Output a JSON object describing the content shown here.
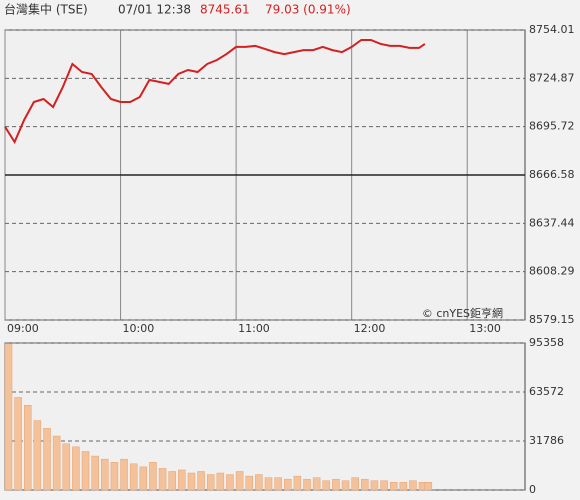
{
  "header": {
    "name": "台灣集中 (TSE)",
    "time": "07/01 12:38",
    "price": "8745.61",
    "change": "79.03 (0.91%)"
  },
  "chart_data": [
    {
      "type": "line",
      "annotation": "© cnYES鉅亨網",
      "color": "#d42020",
      "x": [
        "09:00",
        "09:05",
        "09:10",
        "09:15",
        "09:20",
        "09:25",
        "09:30",
        "09:35",
        "09:40",
        "09:45",
        "09:50",
        "09:55",
        "10:00",
        "10:05",
        "10:10",
        "10:15",
        "10:20",
        "10:25",
        "10:30",
        "10:35",
        "10:40",
        "10:45",
        "10:50",
        "10:55",
        "11:00",
        "11:05",
        "11:10",
        "11:15",
        "11:20",
        "11:25",
        "11:30",
        "11:35",
        "11:40",
        "11:45",
        "11:50",
        "11:55",
        "12:00",
        "12:05",
        "12:10",
        "12:15",
        "12:20",
        "12:25",
        "12:30",
        "12:35",
        "12:38"
      ],
      "values": [
        8695.7,
        8686.5,
        8700,
        8710.6,
        8712.4,
        8707.6,
        8719.6,
        8733.5,
        8728.7,
        8727.5,
        8719.6,
        8712.4,
        8710.6,
        8710.6,
        8713.6,
        8723.9,
        8722.7,
        8721.5,
        8727.5,
        8729.9,
        8728.7,
        8733.5,
        8735.9,
        8739.5,
        8743.8,
        8743.8,
        8744.4,
        8742.6,
        8740.7,
        8739.5,
        8740.7,
        8741.9,
        8741.9,
        8743.8,
        8741.9,
        8740.7,
        8743.8,
        8748,
        8748,
        8745.6,
        8744.4,
        8744.4,
        8743.2,
        8743.2,
        8745.61
      ],
      "xlim": [
        "09:00",
        "13:30"
      ],
      "xticks": [
        "09:00",
        "10:00",
        "11:00",
        "12:00",
        "13:00"
      ],
      "ylim": [
        8579.15,
        8754.01
      ],
      "yticks": [
        8579.15,
        8608.29,
        8637.44,
        8666.58,
        8695.72,
        8724.87,
        8754.01
      ],
      "baseline": 8666.58,
      "grid": true
    },
    {
      "type": "bar",
      "color": "#f3c29a",
      "x": [
        "09:00",
        "09:05",
        "09:10",
        "09:15",
        "09:20",
        "09:25",
        "09:30",
        "09:35",
        "09:40",
        "09:45",
        "09:50",
        "09:55",
        "10:00",
        "10:05",
        "10:10",
        "10:15",
        "10:20",
        "10:25",
        "10:30",
        "10:35",
        "10:40",
        "10:45",
        "10:50",
        "10:55",
        "11:00",
        "11:05",
        "11:10",
        "11:15",
        "11:20",
        "11:25",
        "11:30",
        "11:35",
        "11:40",
        "11:45",
        "11:50",
        "11:55",
        "12:00",
        "12:05",
        "12:10",
        "12:15",
        "12:20",
        "12:25",
        "12:30",
        "12:35",
        "12:38"
      ],
      "values": [
        95000,
        60000,
        55000,
        45000,
        40000,
        35000,
        30000,
        28000,
        25000,
        22000,
        20000,
        18000,
        20000,
        17000,
        15000,
        18000,
        14000,
        12000,
        13000,
        11000,
        12000,
        10000,
        11000,
        10000,
        12000,
        9000,
        10000,
        8000,
        8000,
        7000,
        9000,
        7000,
        8000,
        6000,
        7000,
        6000,
        8000,
        7000,
        6000,
        6000,
        5000,
        5000,
        6000,
        5000,
        5000
      ],
      "xlim": [
        "09:00",
        "13:30"
      ],
      "ylim": [
        0,
        95358
      ],
      "yticks": [
        0,
        31786,
        63572,
        95358
      ],
      "grid": true
    }
  ]
}
